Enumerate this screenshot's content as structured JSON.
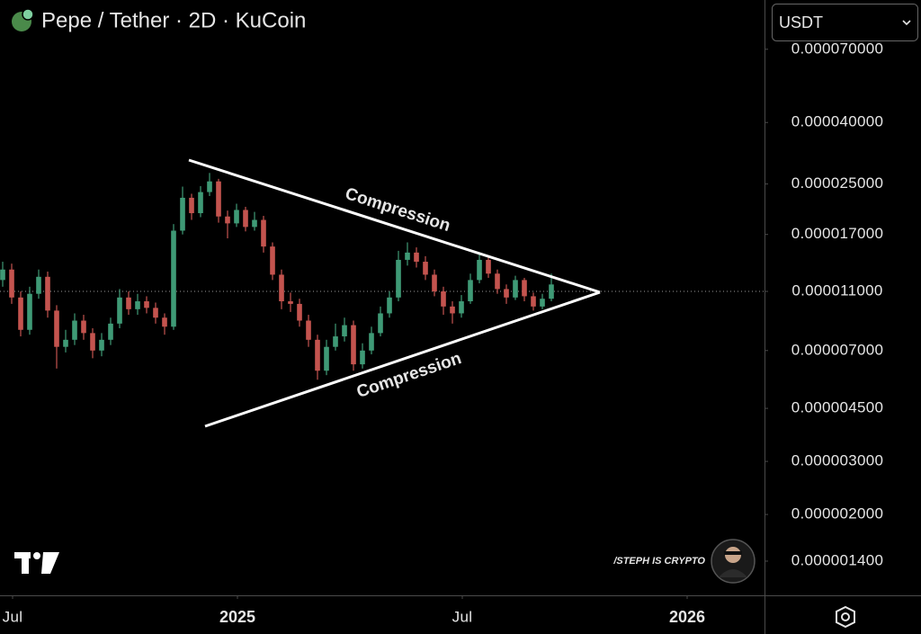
{
  "chart_data": {
    "type": "candlestick",
    "title": "Pepe / Tether · 2D · KuCoin",
    "currency": "USDT",
    "watermark": "/STEPH IS CRYPTO",
    "annotations": [
      "Compression",
      "Compression"
    ],
    "log_scale": true,
    "up_color": "#3f9a76",
    "down_color": "#c4544f",
    "price_line": 1.1e-05,
    "xlim": [
      2024.472,
      2026.172
    ],
    "xticks": [
      {
        "value": 2024.5,
        "label": "Jul"
      },
      2025,
      {
        "value": 2025.5,
        "label": "Jul"
      },
      2026
    ],
    "ylim": [
      1.078e-06,
      0.000102
    ],
    "yticks": [
      {
        "value": 1.4e-06,
        "label": "0.000001400"
      },
      {
        "value": 2e-06,
        "label": "0.000002000"
      },
      {
        "value": 3e-06,
        "label": "0.000003000"
      },
      {
        "value": 4.5e-06,
        "label": "0.000004500"
      },
      {
        "value": 7e-06,
        "label": "0.000007000"
      },
      {
        "value": 1.1e-05,
        "label": "0.000011000"
      },
      {
        "value": 1.7e-05,
        "label": "0.000017000"
      },
      {
        "value": 2.5e-05,
        "label": "0.000025000"
      },
      {
        "value": 4e-05,
        "label": "0.000040000"
      },
      {
        "value": 7e-05,
        "label": "0.000070000"
      }
    ],
    "x": [
      2024.478,
      2024.498,
      2024.518,
      2024.538,
      2024.558,
      2024.578,
      2024.598,
      2024.618,
      2024.638,
      2024.658,
      2024.678,
      2024.698,
      2024.718,
      2024.738,
      2024.758,
      2024.778,
      2024.798,
      2024.818,
      2024.838,
      2024.858,
      2024.878,
      2024.898,
      2024.918,
      2024.938,
      2024.958,
      2024.978,
      2024.998,
      2025.018,
      2025.038,
      2025.058,
      2025.078,
      2025.098,
      2025.118,
      2025.138,
      2025.158,
      2025.178,
      2025.198,
      2025.218,
      2025.238,
      2025.258,
      2025.278,
      2025.298,
      2025.318,
      2025.338,
      2025.358,
      2025.378,
      2025.398,
      2025.418,
      2025.438,
      2025.458,
      2025.478,
      2025.498,
      2025.518,
      2025.538,
      2025.558,
      2025.578,
      2025.598,
      2025.618,
      2025.638,
      2025.658,
      2025.678,
      2025.698
    ],
    "open": [
      1.2e-05,
      1.3e-05,
      1.05e-05,
      8.2e-06,
      1.08e-05,
      1.23e-05,
      9.5e-06,
      7.2e-06,
      7.6e-06,
      8.8e-06,
      8e-06,
      7e-06,
      7.6e-06,
      8.6e-06,
      1.05e-05,
      9.6e-06,
      1.02e-05,
      9.7e-06,
      9e-06,
      8.4e-06,
      1.75e-05,
      2.25e-05,
      2e-05,
      2.35e-05,
      2.55e-05,
      1.95e-05,
      1.85e-05,
      2.05e-05,
      1.8e-05,
      1.9e-05,
      1.55e-05,
      1.25e-05,
      1.02e-05,
      1e-05,
      8.8e-06,
      7.6e-06,
      6e-06,
      7.2e-06,
      7.8e-06,
      8.5e-06,
      6.3e-06,
      7e-06,
      8e-06,
      9.3e-06,
      1.05e-05,
      1.4e-05,
      1.48e-05,
      1.38e-05,
      1.25e-05,
      1.1e-05,
      9.8e-06,
      9.3e-06,
      1.02e-05,
      1.2e-05,
      1.4e-05,
      1.26e-05,
      1.12e-05,
      1.05e-05,
      1.2e-05,
      1.06e-05,
      9.8e-06,
      1.04e-05
    ],
    "high": [
      1.38e-05,
      1.36e-05,
      1.1e-05,
      1.14e-05,
      1.3e-05,
      1.28e-05,
      9.9e-06,
      8.2e-06,
      9.3e-06,
      9.2e-06,
      8.3e-06,
      8e-06,
      9e-06,
      1.12e-05,
      1.1e-05,
      1.08e-05,
      1.06e-05,
      1.01e-05,
      9.3e-06,
      1.84e-05,
      2.45e-05,
      2.32e-05,
      2.46e-05,
      2.72e-05,
      2.6e-05,
      2.04e-05,
      2.15e-05,
      2.1e-05,
      2.02e-05,
      1.96e-05,
      1.6e-05,
      1.3e-05,
      1.09e-05,
      1.04e-05,
      9.2e-06,
      7.9e-06,
      7.6e-06,
      8.6e-06,
      9e-06,
      8.8e-06,
      7.4e-06,
      8.4e-06,
      9.8e-06,
      1.1e-05,
      1.5e-05,
      1.6e-05,
      1.54e-05,
      1.44e-05,
      1.3e-05,
      1.14e-05,
      1.02e-05,
      1.07e-05,
      1.26e-05,
      1.46e-05,
      1.44e-05,
      1.3e-05,
      1.16e-05,
      1.24e-05,
      1.22e-05,
      1.09e-05,
      1.08e-05,
      1.26e-05
    ],
    "low": [
      1.14e-05,
      1e-05,
      7.8e-06,
      7.9e-06,
      1.04e-05,
      9e-06,
      6.1e-06,
      6.9e-06,
      7.3e-06,
      7.6e-06,
      6.6e-06,
      6.7e-06,
      7.3e-06,
      8.3e-06,
      9.2e-06,
      9.2e-06,
      9.3e-06,
      8.6e-06,
      7.9e-06,
      8.2e-06,
      1.7e-05,
      1.9e-05,
      1.94e-05,
      2.28e-05,
      1.86e-05,
      1.65e-05,
      1.8e-05,
      1.74e-05,
      1.75e-05,
      1.48e-05,
      1.2e-05,
      9.6e-06,
      9.4e-06,
      8.4e-06,
      7.2e-06,
      5.6e-06,
      5.8e-06,
      7e-06,
      7.5e-06,
      6e-06,
      6.1e-06,
      6.8e-06,
      7.8e-06,
      9e-06,
      1.02e-05,
      1.34e-05,
      1.32e-05,
      1.2e-05,
      1.06e-05,
      9.2e-06,
      8.6e-06,
      9e-06,
      1e-05,
      1.17e-05,
      1.22e-05,
      1.08e-05,
      1e-05,
      1.03e-05,
      1.02e-05,
      9.5e-06,
      9.6e-06,
      1.02e-05
    ],
    "close": [
      1.3e-05,
      1.05e-05,
      8.2e-06,
      1.08e-05,
      1.23e-05,
      9.5e-06,
      7.2e-06,
      7.6e-06,
      8.8e-06,
      8e-06,
      7e-06,
      7.6e-06,
      8.6e-06,
      1.05e-05,
      9.6e-06,
      1.02e-05,
      9.7e-06,
      9e-06,
      8.4e-06,
      1.75e-05,
      2.25e-05,
      2e-05,
      2.35e-05,
      2.55e-05,
      1.95e-05,
      1.85e-05,
      2.05e-05,
      1.8e-05,
      1.9e-05,
      1.55e-05,
      1.25e-05,
      1.02e-05,
      1e-05,
      8.8e-06,
      7.6e-06,
      6e-06,
      7.2e-06,
      7.8e-06,
      8.5e-06,
      6.3e-06,
      7e-06,
      8e-06,
      9.3e-06,
      1.05e-05,
      1.4e-05,
      1.48e-05,
      1.38e-05,
      1.25e-05,
      1.1e-05,
      9.8e-06,
      9.3e-06,
      1.02e-05,
      1.2e-05,
      1.4e-05,
      1.26e-05,
      1.12e-05,
      1.05e-05,
      1.2e-05,
      1.06e-05,
      9.8e-06,
      1.04e-05,
      1.16e-05
    ]
  }
}
